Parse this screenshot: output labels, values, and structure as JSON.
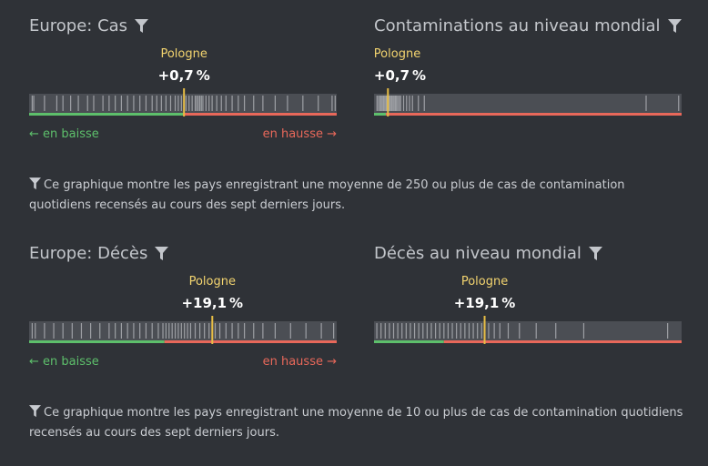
{
  "chart_data": [
    {
      "type": "strip",
      "title": "Europe: Cas",
      "highlight": {
        "label": "Pologne",
        "value_label": "+0,7 %",
        "value": 0.7
      },
      "x_min": -100,
      "x_max": 100,
      "split_value": 0,
      "legend_down": "← en baisse",
      "legend_up": "en hausse →",
      "marks": [
        -98,
        -97,
        -90,
        -82,
        -78,
        -73,
        -68,
        -62,
        -58,
        -52,
        -48,
        -44,
        -40,
        -36,
        -32,
        -28,
        -24,
        -20,
        -17,
        -14,
        -11,
        -8,
        -5,
        -3,
        -1,
        0.7,
        2,
        4,
        6,
        8,
        9,
        10,
        11,
        12,
        13,
        15,
        17,
        19,
        22,
        25,
        28,
        32,
        36,
        40,
        46,
        52,
        60,
        68,
        78,
        88,
        97,
        99
      ]
    },
    {
      "type": "strip",
      "title": "Contaminations au niveau mondial",
      "highlight": {
        "label": "Pologne",
        "value_label": "+0,7 %",
        "value": 0.7
      },
      "x_min": -4,
      "x_max": 100,
      "split_value": 0,
      "marks": [
        -3,
        -2.5,
        -2,
        -1.6,
        -1.2,
        -0.8,
        -0.4,
        0,
        0.3,
        0.6,
        0.9,
        1.2,
        1.6,
        2,
        2.4,
        2.8,
        3.2,
        3.6,
        4,
        4.5,
        5,
        6,
        7,
        8,
        9,
        11,
        13,
        88,
        99
      ]
    },
    {
      "type": "strip",
      "title": "Europe: Décès",
      "highlight": {
        "label": "Pologne",
        "value_label": "+19,1 %",
        "value": 19.1
      },
      "x_min": -100,
      "x_max": 100,
      "split_value": -12,
      "legend_down": "← en baisse",
      "legend_up": "en hausse →",
      "marks": [
        -98,
        -96,
        -90,
        -84,
        -78,
        -72,
        -66,
        -60,
        -54,
        -48,
        -44,
        -40,
        -36,
        -32,
        -28,
        -24,
        -20,
        -16,
        -13,
        -11,
        -9,
        -7,
        -5,
        -3,
        -1,
        1,
        3,
        5,
        8,
        11,
        14,
        17,
        19.1,
        21,
        24,
        28,
        32,
        36,
        40,
        46,
        52,
        60,
        70,
        80,
        90,
        98
      ]
    },
    {
      "type": "strip",
      "title": "Décès au niveau mondial",
      "highlight": {
        "label": "Pologne",
        "value_label": "+19,1 %",
        "value": 19.1
      },
      "x_min": -60,
      "x_max": 160,
      "split_value": -10,
      "marks": [
        -58,
        -55,
        -52,
        -49,
        -46,
        -43,
        -40,
        -37,
        -34,
        -31,
        -28,
        -25,
        -22,
        -19,
        -16,
        -13,
        -10,
        -7,
        -4,
        -1,
        2,
        5,
        8,
        11,
        14,
        17,
        19.1,
        22,
        26,
        30,
        36,
        44,
        56,
        70,
        90,
        150
      ]
    }
  ],
  "notes": {
    "cases": "Ce graphique montre les pays enregistrant une moyenne de 250 ou plus de cas de contamination quotidiens recensés au cours des sept derniers jours.",
    "deaths": "Ce graphique montre les pays enregistrant une moyenne de 10 ou plus de cas de contamination quotidiens recensés au cours des sept derniers jours."
  },
  "colors": {
    "track": "#4b4e54",
    "tick": "#b8bbbf",
    "highlight": "#e6bd45",
    "down": "#5dbf6b",
    "up": "#e8685a"
  }
}
